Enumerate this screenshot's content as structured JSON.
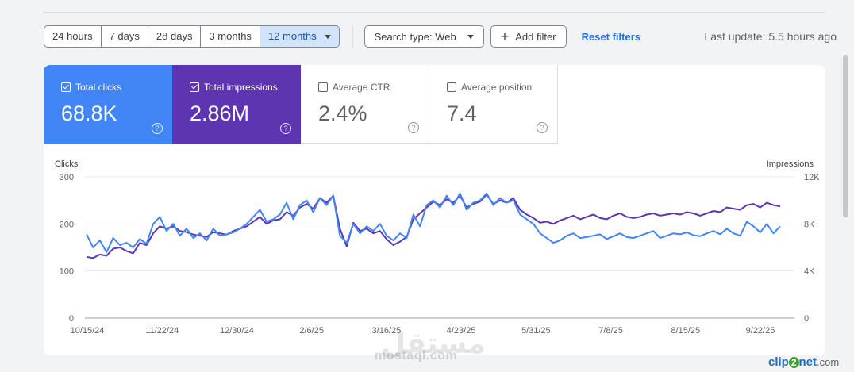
{
  "filters": {
    "date_ranges": [
      "24 hours",
      "7 days",
      "28 days",
      "3 months",
      "12 months"
    ],
    "active_range": "12 months",
    "search_type": "Search type: Web",
    "add_filter": "Add filter",
    "reset": "Reset filters",
    "last_update": "Last update: 5.5 hours ago"
  },
  "metrics": [
    {
      "label": "Total clicks",
      "value": "68.8K",
      "checked": true
    },
    {
      "label": "Total impressions",
      "value": "2.86M",
      "checked": true
    },
    {
      "label": "Average CTR",
      "value": "2.4%",
      "checked": false
    },
    {
      "label": "Average position",
      "value": "7.4",
      "checked": false
    }
  ],
  "colors": {
    "clicks": "#4285f4",
    "impressions": "#5e35b1"
  },
  "icons": {
    "help": "?",
    "add": "+"
  },
  "chart_data": {
    "type": "line",
    "ylabel_left": "Clicks",
    "ylabel_right": "Impressions",
    "y_left_ticks": [
      "0",
      "100",
      "200",
      "300"
    ],
    "y_right_ticks": [
      "0",
      "4K",
      "8K",
      "12K"
    ],
    "ylim_left": [
      0,
      300
    ],
    "ylim_right": [
      0,
      12000
    ],
    "x_tick_labels": [
      "10/15/24",
      "11/22/24",
      "12/30/24",
      "2/6/25",
      "3/16/25",
      "4/23/25",
      "5/31/25",
      "7/8/25",
      "8/15/25",
      "9/22/25"
    ],
    "grid": true,
    "series": [
      {
        "name": "Clicks",
        "axis": "left",
        "values": [
          178,
          150,
          165,
          140,
          170,
          155,
          160,
          150,
          168,
          158,
          200,
          215,
          185,
          200,
          175,
          190,
          170,
          180,
          165,
          190,
          175,
          178,
          182,
          190,
          200,
          215,
          230,
          205,
          210,
          220,
          245,
          210,
          240,
          250,
          225,
          255,
          240,
          260,
          175,
          160,
          200,
          180,
          195,
          185,
          200,
          175,
          165,
          180,
          170,
          220,
          195,
          240,
          250,
          235,
          260,
          240,
          265,
          230,
          245,
          250,
          265,
          240,
          255,
          245,
          250,
          220,
          210,
          200,
          180,
          170,
          160,
          165,
          175,
          180,
          170,
          172,
          175,
          178,
          168,
          174,
          180,
          172,
          170,
          175,
          180,
          185,
          170,
          175,
          180,
          178,
          182,
          176,
          174,
          180,
          185,
          178,
          190,
          180,
          175,
          205,
          195,
          182,
          200,
          180,
          195
        ]
      },
      {
        "name": "Impressions",
        "axis": "right",
        "values": [
          5200,
          5100,
          5400,
          5300,
          5900,
          6000,
          5700,
          5500,
          6400,
          6200,
          7200,
          7800,
          7600,
          7800,
          7400,
          7300,
          7100,
          7000,
          6900,
          7300,
          7200,
          7100,
          7400,
          7600,
          7800,
          8200,
          8600,
          8000,
          8300,
          8400,
          9000,
          8700,
          9400,
          9700,
          9300,
          10200,
          9800,
          10400,
          7600,
          6100,
          8100,
          7400,
          7600,
          7200,
          7400,
          6700,
          6200,
          6500,
          6900,
          8400,
          8900,
          9400,
          9900,
          9600,
          10100,
          9800,
          10400,
          9400,
          9700,
          9900,
          10500,
          9700,
          10000,
          9800,
          10200,
          9200,
          8800,
          8500,
          8100,
          8200,
          8000,
          8300,
          8500,
          8700,
          8400,
          8600,
          8800,
          8500,
          8400,
          8700,
          8900,
          8600,
          8500,
          8600,
          8800,
          8900,
          8700,
          8800,
          8900,
          8800,
          9000,
          8900,
          8700,
          8900,
          9100,
          9000,
          9400,
          9300,
          9200,
          9600,
          9700,
          9400,
          9800,
          9600,
          9500
        ]
      }
    ]
  }
}
